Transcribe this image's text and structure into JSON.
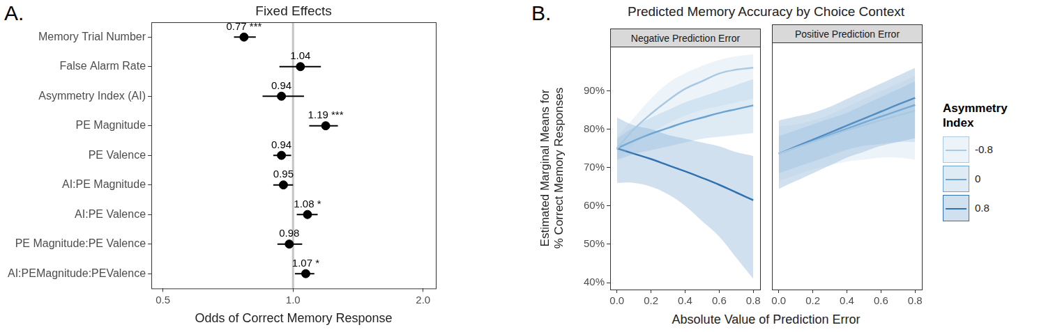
{
  "chart_data": [
    {
      "type": "forest",
      "panel": "A.",
      "title": "Fixed Effects",
      "categories": [
        "Memory Trial Number",
        "False Alarm Rate",
        "Asymmetry Index (AI)",
        "PE Magnitude",
        "PE Valence",
        "AI:PE Magnitude",
        "AI:PE Valence",
        "PE Magnitude:PE Valence",
        "AI:PEMagnitude:PEValence"
      ],
      "values": [
        0.77,
        1.04,
        0.94,
        1.19,
        0.94,
        0.95,
        1.08,
        0.98,
        1.07
      ],
      "value_labels": [
        "0.77 ***",
        "1.04",
        "0.94",
        "1.19 ***",
        "0.94",
        "0.95",
        "1.08 *",
        "0.98",
        "1.07 *"
      ],
      "error_low": [
        0.73,
        0.93,
        0.85,
        1.09,
        0.9,
        0.9,
        1.02,
        0.92,
        1.01
      ],
      "error_high": [
        0.82,
        1.16,
        1.06,
        1.27,
        0.99,
        1.0,
        1.14,
        1.05,
        1.12
      ],
      "reference_line": 1,
      "x_label": "Odds of Correct Memory Response",
      "xlim": [
        0.47,
        2.14
      ],
      "xticks": [
        0.5,
        {
          "value": 1,
          "label": "1.0"
        },
        {
          "value": 2,
          "label": "2.0"
        }
      ],
      "log": "x",
      "data_labels": true,
      "grid": false,
      "color": "#000000"
    },
    {
      "type": "line",
      "panel": "B.",
      "title": "Predicted Memory Accuracy by Choice Context",
      "x_label": "Absolute Value of Prediction Error",
      "y_label": [
        "Estimated Marginal Means for",
        "% Correct Memory Responses"
      ],
      "x": [
        0,
        0.1,
        0.2,
        0.3,
        0.4,
        0.5,
        0.6,
        0.7,
        0.8
      ],
      "xlim": [
        -0.04,
        0.84
      ],
      "xticks": [
        {
          "value": 0,
          "label": "0.0"
        },
        0.2,
        0.4,
        0.6,
        0.8
      ],
      "ylim": [
        38.2,
        101.5
      ],
      "yticks": [
        {
          "value": 40,
          "label": "40%"
        },
        {
          "value": 50,
          "label": "50%"
        },
        {
          "value": 60,
          "label": "60%"
        },
        {
          "value": 70,
          "label": "70%"
        },
        {
          "value": 80,
          "label": "80%"
        },
        {
          "value": 90,
          "label": "90%"
        }
      ],
      "legend": "right",
      "legend_title": "Asymmetry Index",
      "grid": false,
      "facets": [
        {
          "title": "Negative Prediction Error",
          "series": [
            {
              "name": "-0.8",
              "color": "#a9c9e3",
              "values": [
                75,
                80,
                84,
                87.5,
                90.5,
                92.5,
                94.5,
                95.5,
                96
              ],
              "lower": [
                72,
                76,
                79,
                81.5,
                83.5,
                85,
                86,
                87,
                88
              ],
              "upper": [
                78,
                83,
                88,
                92,
                94.5,
                96.5,
                98,
                99,
                99.5
              ]
            },
            {
              "name": "0",
              "color": "#6aa3d2",
              "values": [
                75,
                77,
                78.8,
                80.3,
                81.8,
                83,
                84.2,
                85.2,
                86.2
              ],
              "lower": [
                72,
                73.5,
                74.5,
                75.5,
                76.5,
                77.5,
                78,
                78.5,
                79
              ],
              "upper": [
                77.5,
                80.5,
                83,
                85,
                87,
                88.5,
                90,
                91.5,
                93
              ]
            },
            {
              "name": "0.8",
              "color": "#2f73b2",
              "values": [
                75,
                73.6,
                72.2,
                70.6,
                69,
                67.3,
                65.5,
                63.5,
                61.5
              ],
              "lower": [
                66,
                66,
                65,
                63,
                60,
                56,
                52,
                46.5,
                41
              ],
              "upper": [
                83,
                81,
                80,
                78.5,
                77.5,
                76.5,
                75.5,
                74,
                73
              ]
            }
          ]
        },
        {
          "title": "Positive Prediction Error",
          "series": [
            {
              "name": "-0.8",
              "color": "#a9c9e3",
              "values": [
                73,
                74.5,
                76,
                77.5,
                79,
                80.3,
                81.6,
                82.8,
                84
              ],
              "lower": [
                66,
                67.5,
                69,
                70,
                71,
                71.5,
                72,
                72,
                71.5
              ],
              "upper": [
                80,
                80.5,
                81.5,
                83,
                85,
                87,
                89,
                91,
                93
              ]
            },
            {
              "name": "0",
              "color": "#6aa3d2",
              "values": [
                73,
                74.6,
                76.2,
                77.8,
                79.4,
                81,
                82.5,
                84,
                85.5
              ],
              "lower": [
                68,
                69.5,
                71,
                72.5,
                74,
                75,
                75.5,
                76,
                76
              ],
              "upper": [
                77.5,
                79,
                80.5,
                82,
                83.5,
                85.5,
                87.5,
                89.5,
                91.5
              ]
            },
            {
              "name": "0.8",
              "color": "#2f73b2",
              "values": [
                73,
                74.8,
                76.6,
                78.4,
                80.2,
                82,
                83.8,
                85.6,
                87.3
              ],
              "lower": [
                64,
                66,
                68,
                70,
                72,
                73.5,
                75,
                76,
                77
              ],
              "upper": [
                81.5,
                82.5,
                83.5,
                85,
                87,
                89,
                91,
                93,
                95
              ]
            }
          ]
        }
      ]
    }
  ]
}
